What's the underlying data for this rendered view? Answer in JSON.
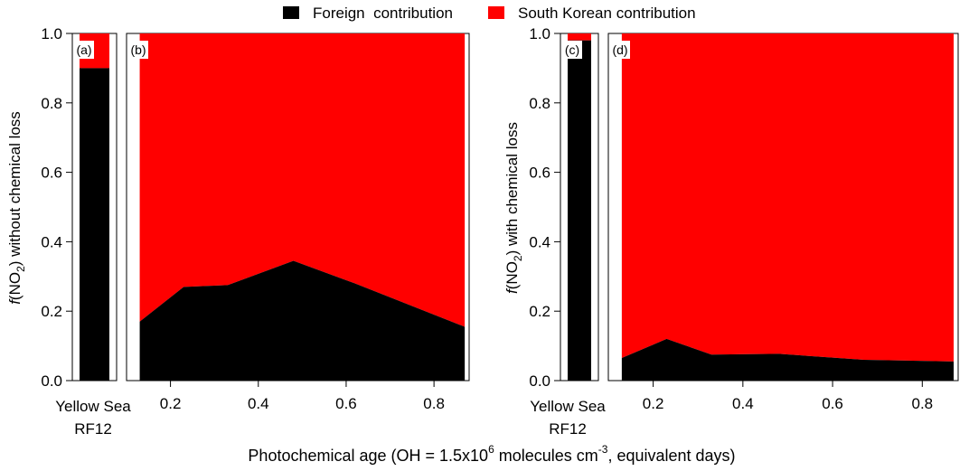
{
  "legend": {
    "foreign": {
      "label": "Foreign  contribution",
      "color": "#000000"
    },
    "korean": {
      "label": "South Korean contribution",
      "color": "#ff0000"
    }
  },
  "x_axis_label": {
    "prefix": "Photochemical age (OH = 1.5x10",
    "sup1": "6",
    "mid": " molecules cm",
    "sup2": "-3",
    "suffix": ", equivalent days)"
  },
  "y_axis_left": {
    "prefix": "f",
    "mid": "(NO",
    "sub": "2",
    "suffix": ") without chemical loss"
  },
  "y_axis_right": {
    "prefix": "f",
    "mid": "(NO",
    "sub": "2",
    "suffix": ") with chemical loss"
  },
  "panel_labels": {
    "a": "(a)",
    "b": "(b)",
    "c": "(c)",
    "d": "(d)"
  },
  "side_labels": {
    "line1": "Yellow Sea",
    "line2": "RF12"
  },
  "y_ticks": [
    "0.0",
    "0.2",
    "0.4",
    "0.6",
    "0.8",
    "1.0"
  ],
  "x_ticks": [
    "0.2",
    "0.4",
    "0.6",
    "0.8"
  ],
  "chart_data": [
    {
      "type": "bar",
      "panel": "(a)",
      "categories": [
        "Yellow Sea RF12"
      ],
      "series": [
        {
          "name": "Foreign  contribution",
          "values": [
            0.9
          ]
        },
        {
          "name": "South Korean contribution",
          "values": [
            0.1
          ]
        }
      ],
      "ylim": [
        0,
        1
      ]
    },
    {
      "type": "area",
      "panel": "(b)",
      "x": [
        0.13,
        0.23,
        0.33,
        0.48,
        0.62,
        0.87
      ],
      "series": [
        {
          "name": "Foreign  contribution",
          "values": [
            0.17,
            0.27,
            0.275,
            0.345,
            0.28,
            0.155
          ]
        },
        {
          "name": "South Korean contribution",
          "values": [
            0.83,
            0.73,
            0.725,
            0.655,
            0.72,
            0.845
          ]
        }
      ],
      "xlim": [
        0.1,
        0.88
      ],
      "ylim": [
        0,
        1
      ],
      "stacked": true
    },
    {
      "type": "bar",
      "panel": "(c)",
      "categories": [
        "Yellow Sea RF12"
      ],
      "series": [
        {
          "name": "Foreign  contribution",
          "values": [
            0.98
          ]
        },
        {
          "name": "South Korean contribution",
          "values": [
            0.02
          ]
        }
      ],
      "ylim": [
        0,
        1
      ]
    },
    {
      "type": "area",
      "panel": "(d)",
      "x": [
        0.13,
        0.23,
        0.33,
        0.48,
        0.67,
        0.87
      ],
      "series": [
        {
          "name": "Foreign  contribution",
          "values": [
            0.065,
            0.12,
            0.075,
            0.077,
            0.06,
            0.055
          ]
        },
        {
          "name": "South Korean contribution",
          "values": [
            0.935,
            0.88,
            0.925,
            0.923,
            0.94,
            0.945
          ]
        }
      ],
      "xlim": [
        0.1,
        0.88
      ],
      "ylim": [
        0,
        1
      ],
      "stacked": true
    }
  ]
}
